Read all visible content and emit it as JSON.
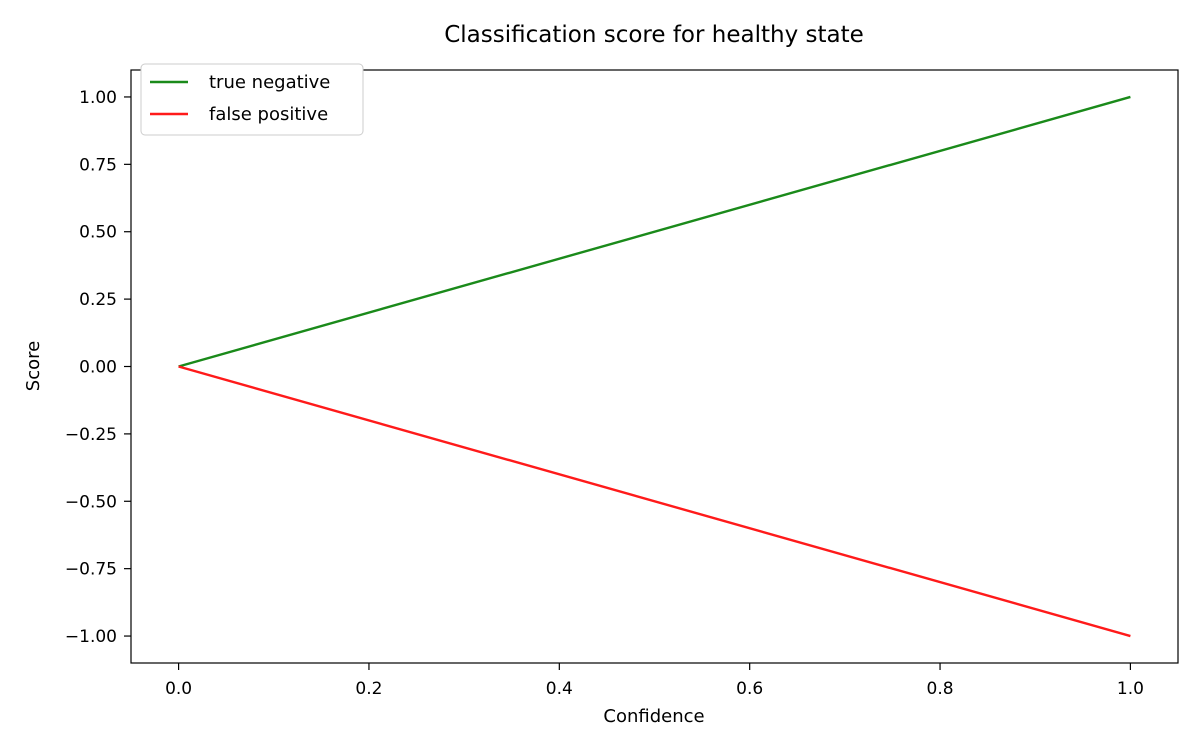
{
  "chart_data": {
    "type": "line",
    "title": "Classification score for healthy state",
    "xlabel": "Confidence",
    "ylabel": "Score",
    "xlim": [
      -0.05,
      1.05
    ],
    "ylim": [
      -1.1,
      1.1
    ],
    "xticks": [
      0.0,
      0.2,
      0.4,
      0.6,
      0.8,
      1.0
    ],
    "xtick_labels": [
      "0.0",
      "0.2",
      "0.4",
      "0.6",
      "0.8",
      "1.0"
    ],
    "yticks": [
      1.0,
      0.75,
      0.5,
      0.25,
      0.0,
      -0.25,
      -0.5,
      -0.75,
      -1.0
    ],
    "ytick_labels": [
      "1.00",
      "0.75",
      "0.50",
      "0.25",
      "0.00",
      "−0.25",
      "−0.50",
      "−0.75",
      "−1.00"
    ],
    "grid": false,
    "legend_position": "top-left",
    "series": [
      {
        "name": "true negative",
        "color": "#1a8a1a",
        "x": [
          0.0,
          1.0
        ],
        "y": [
          0.0,
          1.0
        ]
      },
      {
        "name": "false positive",
        "color": "#ff1a1a",
        "x": [
          0.0,
          1.0
        ],
        "y": [
          0.0,
          -1.0
        ]
      }
    ]
  }
}
